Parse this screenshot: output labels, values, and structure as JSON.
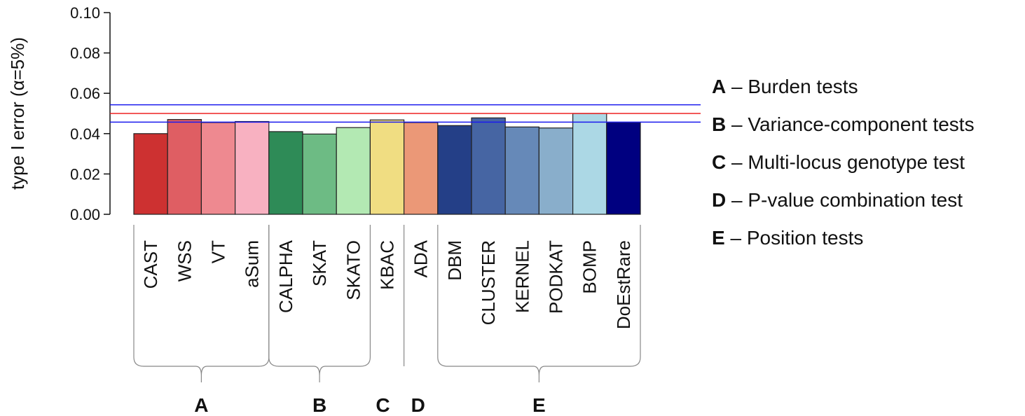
{
  "chart_data": {
    "type": "bar",
    "ylabel": "type I error (α=5%)",
    "ylim": [
      0,
      0.1
    ],
    "yticks": [
      "0.00",
      "0.02",
      "0.04",
      "0.06",
      "0.08",
      "0.10"
    ],
    "ytick_values": [
      0,
      0.02,
      0.04,
      0.06,
      0.08,
      0.1
    ],
    "categories": [
      "CAST",
      "WSS",
      "VT",
      "aSum",
      "CALPHA",
      "SKAT",
      "SKATO",
      "KBAC",
      "ADA",
      "DBM",
      "CLUSTER",
      "KERNEL",
      "PODKAT",
      "BOMP",
      "DoEstRare"
    ],
    "values": [
      0.04,
      0.047,
      0.0455,
      0.046,
      0.041,
      0.0398,
      0.043,
      0.0468,
      0.0455,
      0.044,
      0.0478,
      0.0433,
      0.0428,
      0.05,
      0.0455
    ],
    "colors": [
      "#cd3131",
      "#df5e63",
      "#ee8990",
      "#f8b1c1",
      "#2e8b57",
      "#6dbb84",
      "#b3e9b3",
      "#f0dd82",
      "#eb9877",
      "#243f87",
      "#4665a3",
      "#6689b8",
      "#89aecb",
      "#acd8e5",
      "#000080"
    ],
    "reference_lines": [
      {
        "value": 0.05,
        "color": "#ee2222"
      },
      {
        "value": 0.0543,
        "color": "#1a1aee"
      },
      {
        "value": 0.0457,
        "color": "#1a1aee"
      }
    ],
    "groups": [
      {
        "letter": "A",
        "start": 0,
        "end": 3
      },
      {
        "letter": "B",
        "start": 4,
        "end": 6
      },
      {
        "letter": "C",
        "start": 7,
        "end": 7
      },
      {
        "letter": "D",
        "start": 8,
        "end": 8
      },
      {
        "letter": "E",
        "start": 9,
        "end": 14
      }
    ],
    "grid": false
  },
  "legend": [
    {
      "letter": "A",
      "text": " – Burden tests"
    },
    {
      "letter": "B",
      "text": " – Variance-component tests"
    },
    {
      "letter": "C",
      "text": " – Multi-locus genotype test"
    },
    {
      "letter": "D",
      "text": " – P-value combination test"
    },
    {
      "letter": "E",
      "text": " – Position tests"
    }
  ]
}
